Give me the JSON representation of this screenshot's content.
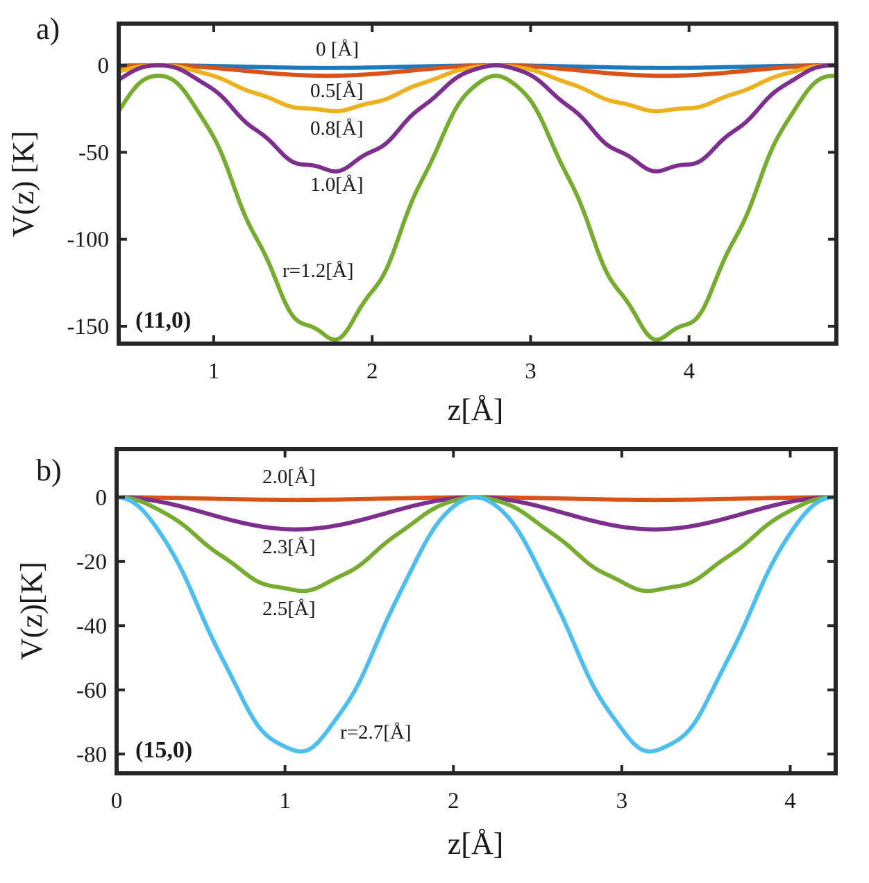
{
  "chart_data": [
    {
      "type": "line",
      "panel_letter": "a)",
      "panel_tag": "(11,0)",
      "xlabel": "z[Å]",
      "ylabel": "V(z) [K]",
      "xlim": [
        0.4,
        4.93
      ],
      "ylim": [
        -160,
        24
      ],
      "xticks": [
        1,
        2,
        3,
        4
      ],
      "xtick_labels": [
        "1",
        "2",
        "3",
        "4"
      ],
      "yticks": [
        0,
        -50,
        -100,
        -150
      ],
      "ytick_labels": [
        "0",
        "-50",
        "-100",
        "-150"
      ],
      "period": 2.13,
      "series": [
        {
          "name": "0 [Å]",
          "label": "0 [Å]",
          "color": "#1f77bd",
          "amplitude": 1.5,
          "phase_max": 0.65,
          "wobble": 0
        },
        {
          "name": "0.5[Å]",
          "label": "0.5[Å]",
          "color": "#d95319",
          "amplitude": 6,
          "phase_max": 0.65,
          "wobble": 0
        },
        {
          "name": "0.8[Å]",
          "label": "0.8[Å]",
          "color": "#edb120",
          "amplitude": 26,
          "phase_max": 0.65,
          "wobble": 0.6
        },
        {
          "name": "1.0[Å]",
          "label": "1.0[Å]",
          "color": "#7e2f8e",
          "amplitude": 60,
          "phase_max": 0.65,
          "wobble": 1.5
        },
        {
          "name": "r=1.2[Å]",
          "label": "r=1.2[Å]",
          "color": "#77ac30",
          "amplitude": 150,
          "offset": -6,
          "phase_max": 0.65,
          "wobble": 3
        }
      ]
    },
    {
      "type": "line",
      "panel_letter": "b)",
      "panel_tag": "(15,0)",
      "xlabel": "z[Å]",
      "ylabel": "V(z)[K]",
      "xlim": [
        0,
        4.27
      ],
      "ylim": [
        -86,
        15
      ],
      "xticks": [
        0,
        1,
        2,
        3,
        4
      ],
      "xtick_labels": [
        "0",
        "1",
        "2",
        "3",
        "4"
      ],
      "yticks": [
        0,
        -20,
        -40,
        -60,
        -80
      ],
      "ytick_labels": [
        "0",
        "-20",
        "-40",
        "-60",
        "-80"
      ],
      "period": 2.13,
      "series": [
        {
          "name": "2.0[Å]",
          "label": "2.0[Å]",
          "color": "#d95319",
          "amplitude": 0.8,
          "phase_max": 0,
          "wobble": 0
        },
        {
          "name": "2.3[Å]",
          "label": "2.3[Å]",
          "color": "#7e2f8e",
          "amplitude": 10,
          "phase_max": 0,
          "wobble": 0
        },
        {
          "name": "2.5[Å]",
          "label": "2.5[Å]",
          "color": "#77ac30",
          "amplitude": 29,
          "phase_max": 0,
          "wobble": 0.4
        },
        {
          "name": "r=2.7[Å]",
          "label": "r=2.7[Å]",
          "color": "#4dbeee",
          "amplitude": 79,
          "phase_max": 0,
          "wobble": 0.6
        }
      ]
    }
  ]
}
